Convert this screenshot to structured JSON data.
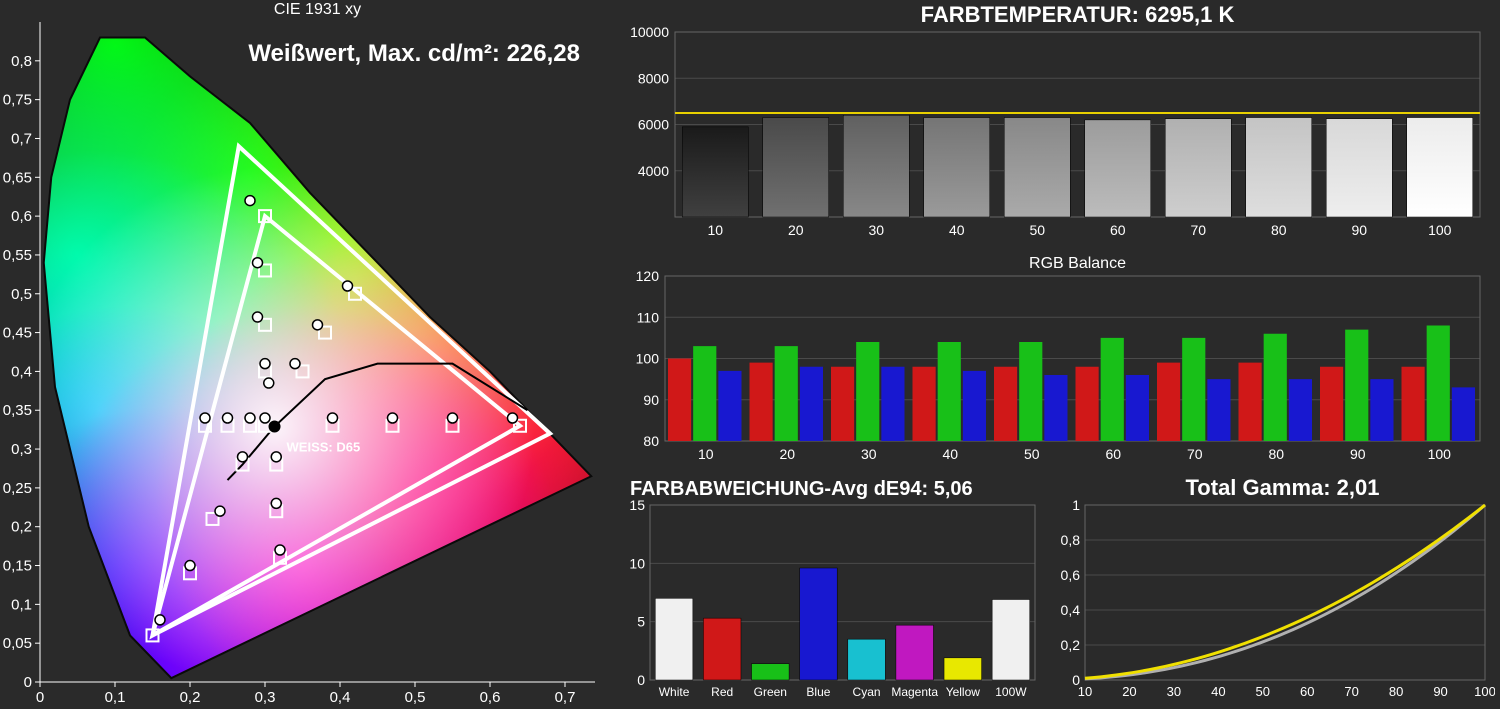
{
  "background_color": "#2a2a2a",
  "grid_color": "#4a4a4a",
  "axis_color": "#ffffff",
  "text_color": "#ffffff",
  "cie": {
    "title": "CIE 1931 xy",
    "subtitle": "Weißwert, Max. cd/m²: 226,28",
    "d65_label": "WEISS: D65",
    "xlim": [
      0,
      0.74
    ],
    "ylim": [
      0,
      0.85
    ],
    "xticks": [
      0,
      0.1,
      0.2,
      0.3,
      0.4,
      0.5,
      0.6,
      0.7
    ],
    "yticks": [
      0,
      0.05,
      0.1,
      0.15,
      0.2,
      0.25,
      0.3,
      0.35,
      0.4,
      0.45,
      0.5,
      0.55,
      0.6,
      0.65,
      0.7,
      0.75,
      0.8
    ],
    "xtick_labels": [
      "0",
      "0,1",
      "0,2",
      "0,3",
      "0,4",
      "0,5",
      "0,6",
      "0,7"
    ],
    "ytick_labels": [
      "0",
      "0,05",
      "0,1",
      "0,15",
      "0,2",
      "0,25",
      "0,3",
      "0,35",
      "0,4",
      "0,45",
      "0,5",
      "0,55",
      "0,6",
      "0,65",
      "0,7",
      "0,75",
      "0,8"
    ],
    "title_fontsize": 16,
    "subtitle_fontsize": 24,
    "locus_outline": "#0a0a0a",
    "triangle_outer": [
      [
        0.68,
        0.32
      ],
      [
        0.265,
        0.69
      ],
      [
        0.15,
        0.06
      ]
    ],
    "triangle_inner": [
      [
        0.64,
        0.33
      ],
      [
        0.3,
        0.6
      ],
      [
        0.15,
        0.06
      ]
    ],
    "triangle_color": "#ffffff",
    "triangle_width": 4,
    "d65_point": [
      0.3127,
      0.329
    ],
    "planckian_color": "#000000",
    "target_squares": [
      [
        0.64,
        0.33
      ],
      [
        0.55,
        0.33
      ],
      [
        0.47,
        0.33
      ],
      [
        0.39,
        0.33
      ],
      [
        0.3,
        0.6
      ],
      [
        0.3,
        0.53
      ],
      [
        0.3,
        0.46
      ],
      [
        0.3,
        0.4
      ],
      [
        0.15,
        0.06
      ],
      [
        0.2,
        0.14
      ],
      [
        0.23,
        0.21
      ],
      [
        0.27,
        0.28
      ],
      [
        0.42,
        0.5
      ],
      [
        0.38,
        0.45
      ],
      [
        0.35,
        0.4
      ],
      [
        0.22,
        0.33
      ],
      [
        0.25,
        0.33
      ],
      [
        0.28,
        0.33
      ],
      [
        0.3,
        0.33
      ],
      [
        0.32,
        0.16
      ],
      [
        0.315,
        0.22
      ],
      [
        0.315,
        0.28
      ]
    ],
    "measured_circles": [
      [
        0.63,
        0.34
      ],
      [
        0.55,
        0.34
      ],
      [
        0.47,
        0.34
      ],
      [
        0.39,
        0.34
      ],
      [
        0.28,
        0.62
      ],
      [
        0.29,
        0.54
      ],
      [
        0.29,
        0.47
      ],
      [
        0.3,
        0.41
      ],
      [
        0.16,
        0.08
      ],
      [
        0.2,
        0.15
      ],
      [
        0.24,
        0.22
      ],
      [
        0.27,
        0.29
      ],
      [
        0.41,
        0.51
      ],
      [
        0.37,
        0.46
      ],
      [
        0.34,
        0.41
      ],
      [
        0.22,
        0.34
      ],
      [
        0.25,
        0.34
      ],
      [
        0.28,
        0.34
      ],
      [
        0.3,
        0.34
      ],
      [
        0.32,
        0.17
      ],
      [
        0.315,
        0.23
      ],
      [
        0.315,
        0.29
      ],
      [
        0.305,
        0.385
      ]
    ],
    "square_color": "#ffffff",
    "circle_stroke": "#000000",
    "circle_fill_light": "#ffffff"
  },
  "color_temp": {
    "title": "FARBTEMPERATUR: 6295,1 K",
    "ylim": [
      2000,
      10000
    ],
    "yticks": [
      4000,
      6000,
      8000,
      10000
    ],
    "yticklabels": [
      "4000",
      "6000",
      "8000",
      "10000"
    ],
    "xlabels": [
      "10",
      "20",
      "30",
      "40",
      "50",
      "60",
      "70",
      "80",
      "90",
      "100"
    ],
    "target_line": 6500,
    "target_color": "#e8d000",
    "bars": [
      {
        "value": 5900,
        "fill_top": "#1a1a1a",
        "fill_bot": "#404040"
      },
      {
        "value": 6300,
        "fill_top": "#4a4a4a",
        "fill_bot": "#707070"
      },
      {
        "value": 6400,
        "fill_top": "#606060",
        "fill_bot": "#888888"
      },
      {
        "value": 6300,
        "fill_top": "#757575",
        "fill_bot": "#9a9a9a"
      },
      {
        "value": 6300,
        "fill_top": "#888888",
        "fill_bot": "#aaaaaa"
      },
      {
        "value": 6200,
        "fill_top": "#9c9c9c",
        "fill_bot": "#bcbcbc"
      },
      {
        "value": 6250,
        "fill_top": "#b0b0b0",
        "fill_bot": "#cecece"
      },
      {
        "value": 6300,
        "fill_top": "#c4c4c4",
        "fill_bot": "#dedede"
      },
      {
        "value": 6250,
        "fill_top": "#d8d8d8",
        "fill_bot": "#eeeeee"
      },
      {
        "value": 6300,
        "fill_top": "#ececec",
        "fill_bot": "#ffffff"
      }
    ],
    "grid_color": "#4a4a4a",
    "title_fontsize": 22
  },
  "rgb_balance": {
    "title": "RGB Balance",
    "ylim": [
      80,
      120
    ],
    "yticks": [
      80,
      90,
      100,
      110,
      120
    ],
    "xlabels": [
      "10",
      "20",
      "30",
      "40",
      "50",
      "60",
      "70",
      "80",
      "90",
      "100"
    ],
    "colors": {
      "r": "#d01818",
      "g": "#18c018",
      "b": "#1818d0"
    },
    "data": [
      {
        "r": 100,
        "g": 103,
        "b": 97
      },
      {
        "r": 99,
        "g": 103,
        "b": 98
      },
      {
        "r": 98,
        "g": 104,
        "b": 98
      },
      {
        "r": 98,
        "g": 104,
        "b": 97
      },
      {
        "r": 98,
        "g": 104,
        "b": 96
      },
      {
        "r": 98,
        "g": 105,
        "b": 96
      },
      {
        "r": 99,
        "g": 105,
        "b": 95
      },
      {
        "r": 99,
        "g": 106,
        "b": 95
      },
      {
        "r": 98,
        "g": 107,
        "b": 95
      },
      {
        "r": 98,
        "g": 108,
        "b": 93
      }
    ],
    "bar_gap": 2,
    "title_fontsize": 16
  },
  "de94": {
    "title": "FARBABWEICHUNG-Avg dE94: 5,06",
    "ylim": [
      0,
      15
    ],
    "yticks": [
      0,
      5,
      10,
      15
    ],
    "labels": [
      "White",
      "Red",
      "Green",
      "Blue",
      "Cyan",
      "Magenta",
      "Yellow",
      "100W"
    ],
    "bars": [
      {
        "value": 7.0,
        "color": "#f0f0f0"
      },
      {
        "value": 5.3,
        "color": "#d01818"
      },
      {
        "value": 1.4,
        "color": "#18c018"
      },
      {
        "value": 9.6,
        "color": "#1818d0"
      },
      {
        "value": 3.5,
        "color": "#18c0d0"
      },
      {
        "value": 4.7,
        "color": "#c018c0"
      },
      {
        "value": 1.9,
        "color": "#e8e800"
      },
      {
        "value": 6.9,
        "color": "#f0f0f0"
      }
    ],
    "title_fontsize": 20
  },
  "gamma": {
    "title": "Total Gamma: 2,01",
    "xlim": [
      10,
      100
    ],
    "ylim": [
      0,
      1
    ],
    "xticks": [
      10,
      20,
      30,
      40,
      50,
      60,
      70,
      80,
      90,
      100
    ],
    "yticks": [
      0,
      0.2,
      0.4,
      0.6,
      0.8,
      1
    ],
    "yticklabels": [
      "0",
      "0,2",
      "0,4",
      "0,6",
      "0,8",
      "1"
    ],
    "ref_color": "#b0b0b0",
    "meas_color": "#f0e000",
    "ref_gamma": 2.2,
    "meas_gamma": 2.01,
    "line_width": 3,
    "title_fontsize": 22
  }
}
